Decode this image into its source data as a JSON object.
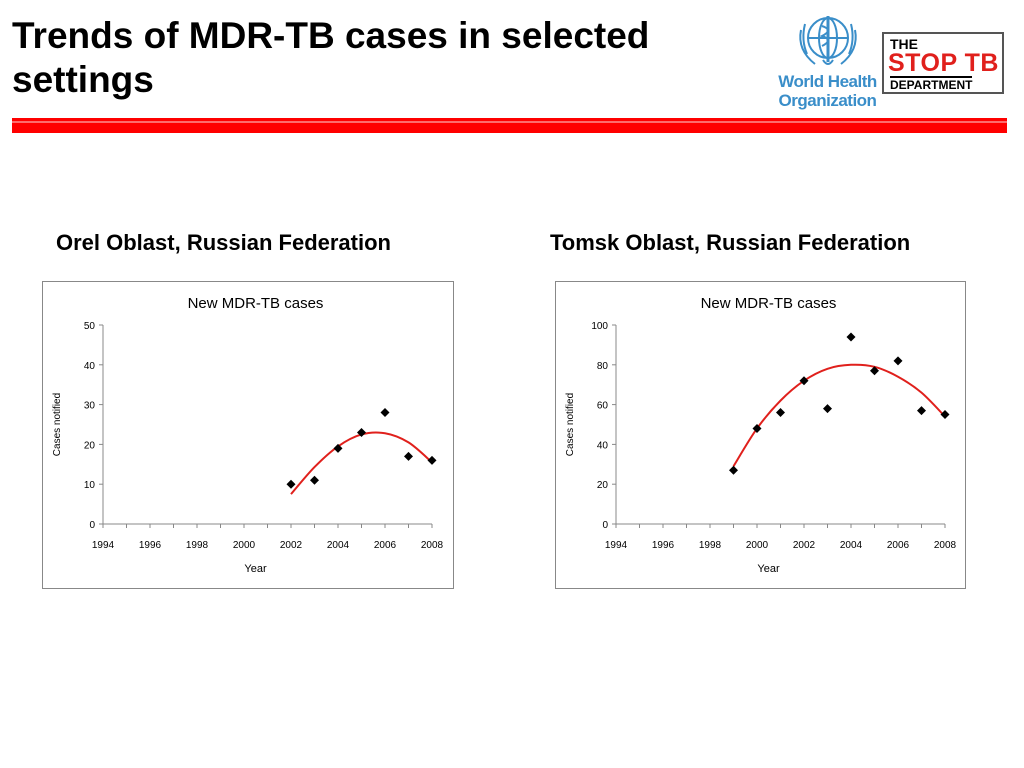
{
  "slide": {
    "title": "Trends of MDR-TB cases in selected settings",
    "accent_color": "#ff0000"
  },
  "logos": {
    "who": {
      "text_line1": "World Health",
      "text_line2": "Organization",
      "icon": "who-emblem-icon",
      "color": "#3a8ec9"
    },
    "stoptb": {
      "the": "THE",
      "main": "STOP TB",
      "department": "DEPARTMENT",
      "color": "#e0201c"
    }
  },
  "panels": [
    {
      "heading": "Orel Oblast, Russian Federation"
    },
    {
      "heading": "Tomsk Oblast, Russian Federation"
    }
  ],
  "chart_data": [
    {
      "type": "scatter",
      "title": "New MDR-TB cases",
      "xlabel": "Year",
      "ylabel": "Cases notified",
      "xlim": [
        1994,
        2008
      ],
      "ylim": [
        0,
        50
      ],
      "x_ticks": [
        "1994",
        "1996",
        "1998",
        "2000",
        "2002",
        "2004",
        "2006",
        "2008"
      ],
      "y_ticks": [
        "0",
        "10",
        "20",
        "30",
        "40",
        "50"
      ],
      "grid": false,
      "legend": "none",
      "marker_color": "#000000",
      "trend_color": "#e0201c",
      "series": [
        {
          "x": [
            2002,
            2003,
            2004,
            2005,
            2006,
            2007,
            2008
          ],
          "y": [
            10,
            11,
            19,
            23,
            28,
            17,
            16
          ]
        }
      ],
      "trendline": {
        "type": "polynomial",
        "x": [
          2002,
          2003,
          2004,
          2005,
          2006,
          2007,
          2008
        ],
        "y": [
          7.5,
          14.3,
          19.5,
          22.5,
          22.8,
          20.5,
          15.5
        ]
      }
    },
    {
      "type": "scatter",
      "title": "New MDR-TB cases",
      "xlabel": "Year",
      "ylabel": "Cases notified",
      "xlim": [
        1994,
        2008
      ],
      "ylim": [
        0,
        100
      ],
      "x_ticks": [
        "1994",
        "1996",
        "1998",
        "2000",
        "2002",
        "2004",
        "2006",
        "2008"
      ],
      "y_ticks": [
        "0",
        "20",
        "40",
        "60",
        "80",
        "100"
      ],
      "grid": false,
      "legend": "none",
      "marker_color": "#000000",
      "trend_color": "#e0201c",
      "series": [
        {
          "x": [
            1999,
            2000,
            2001,
            2002,
            2003,
            2004,
            2005,
            2006,
            2007,
            2008
          ],
          "y": [
            27,
            48,
            56,
            72,
            58,
            94,
            77,
            82,
            57,
            55
          ]
        }
      ],
      "trendline": {
        "type": "polynomial",
        "x": [
          1999,
          2000,
          2001,
          2002,
          2003,
          2004,
          2005,
          2006,
          2007,
          2008
        ],
        "y": [
          29,
          48,
          62,
          72,
          78,
          80,
          79,
          74,
          66,
          54
        ]
      }
    }
  ]
}
